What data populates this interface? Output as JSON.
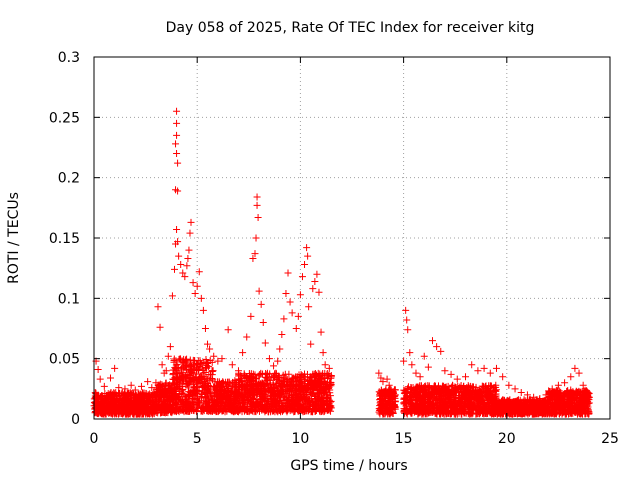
{
  "chart_data": {
    "type": "scatter",
    "title": "Day 058 of 2025, Rate Of TEC Index for receiver kitg",
    "xlabel": "GPS time / hours",
    "ylabel": "ROTI / TECUs",
    "xlim": [
      0,
      25
    ],
    "ylim": [
      0,
      0.3
    ],
    "xticks": [
      0,
      5,
      10,
      15,
      20,
      25
    ],
    "yticks": [
      0,
      0.05,
      0.1,
      0.15,
      0.2,
      0.25,
      0.3
    ],
    "xtick_labels": [
      "0",
      "5",
      "10",
      "15",
      "20",
      "25"
    ],
    "ytick_labels": [
      "0",
      "0.05",
      "0.1",
      "0.15",
      "0.2",
      "0.25",
      "0.3"
    ],
    "grid": true,
    "marker": "+",
    "color": "#ff0000",
    "series": [
      {
        "name": "ROTI",
        "points": [
          [
            0.1,
            0.048
          ],
          [
            0.2,
            0.041
          ],
          [
            0.3,
            0.033
          ],
          [
            0.5,
            0.027
          ],
          [
            0.8,
            0.034
          ],
          [
            1.0,
            0.042
          ],
          [
            1.2,
            0.026
          ],
          [
            1.5,
            0.025
          ],
          [
            1.8,
            0.028
          ],
          [
            2.0,
            0.024
          ],
          [
            2.3,
            0.027
          ],
          [
            2.6,
            0.031
          ],
          [
            2.8,
            0.026
          ],
          [
            3.0,
            0.03
          ],
          [
            3.1,
            0.093
          ],
          [
            3.2,
            0.076
          ],
          [
            3.3,
            0.045
          ],
          [
            3.4,
            0.038
          ],
          [
            3.5,
            0.04
          ],
          [
            3.6,
            0.052
          ],
          [
            3.7,
            0.06
          ],
          [
            3.8,
            0.102
          ],
          [
            3.9,
            0.124
          ],
          [
            4.0,
            0.255
          ],
          [
            4.0,
            0.245
          ],
          [
            4.0,
            0.235
          ],
          [
            3.95,
            0.228
          ],
          [
            4.0,
            0.22
          ],
          [
            4.05,
            0.212
          ],
          [
            3.95,
            0.19
          ],
          [
            4.05,
            0.189
          ],
          [
            4.0,
            0.157
          ],
          [
            4.05,
            0.147
          ],
          [
            3.95,
            0.145
          ],
          [
            4.1,
            0.135
          ],
          [
            4.2,
            0.128
          ],
          [
            4.3,
            0.121
          ],
          [
            4.4,
            0.118
          ],
          [
            4.5,
            0.127
          ],
          [
            4.55,
            0.133
          ],
          [
            4.6,
            0.14
          ],
          [
            4.7,
            0.163
          ],
          [
            4.65,
            0.154
          ],
          [
            4.8,
            0.113
          ],
          [
            4.9,
            0.104
          ],
          [
            5.0,
            0.11
          ],
          [
            5.1,
            0.122
          ],
          [
            5.2,
            0.1
          ],
          [
            5.3,
            0.09
          ],
          [
            5.4,
            0.075
          ],
          [
            5.5,
            0.062
          ],
          [
            5.6,
            0.058
          ],
          [
            5.8,
            0.052
          ],
          [
            6.0,
            0.048
          ],
          [
            6.2,
            0.05
          ],
          [
            6.5,
            0.074
          ],
          [
            6.7,
            0.045
          ],
          [
            7.0,
            0.04
          ],
          [
            7.2,
            0.055
          ],
          [
            7.4,
            0.068
          ],
          [
            7.6,
            0.085
          ],
          [
            7.7,
            0.133
          ],
          [
            7.8,
            0.137
          ],
          [
            7.85,
            0.15
          ],
          [
            7.9,
            0.184
          ],
          [
            7.9,
            0.177
          ],
          [
            7.95,
            0.167
          ],
          [
            8.0,
            0.106
          ],
          [
            8.1,
            0.095
          ],
          [
            8.2,
            0.08
          ],
          [
            8.3,
            0.063
          ],
          [
            8.5,
            0.05
          ],
          [
            8.7,
            0.044
          ],
          [
            8.9,
            0.048
          ],
          [
            9.0,
            0.058
          ],
          [
            9.1,
            0.07
          ],
          [
            9.2,
            0.083
          ],
          [
            9.3,
            0.104
          ],
          [
            9.4,
            0.121
          ],
          [
            9.5,
            0.097
          ],
          [
            9.6,
            0.088
          ],
          [
            9.8,
            0.075
          ],
          [
            9.9,
            0.085
          ],
          [
            10.0,
            0.103
          ],
          [
            10.1,
            0.118
          ],
          [
            10.2,
            0.128
          ],
          [
            10.3,
            0.142
          ],
          [
            10.35,
            0.135
          ],
          [
            10.4,
            0.093
          ],
          [
            10.5,
            0.062
          ],
          [
            10.6,
            0.108
          ],
          [
            10.7,
            0.114
          ],
          [
            10.8,
            0.12
          ],
          [
            10.9,
            0.105
          ],
          [
            11.0,
            0.072
          ],
          [
            11.1,
            0.055
          ],
          [
            11.2,
            0.045
          ],
          [
            11.4,
            0.042
          ],
          [
            11.5,
            0.035
          ],
          [
            13.8,
            0.038
          ],
          [
            13.9,
            0.034
          ],
          [
            14.0,
            0.031
          ],
          [
            14.2,
            0.033
          ],
          [
            14.3,
            0.028
          ],
          [
            14.4,
            0.024
          ],
          [
            14.5,
            0.022
          ],
          [
            14.6,
            0.02
          ],
          [
            15.0,
            0.048
          ],
          [
            15.1,
            0.09
          ],
          [
            15.15,
            0.082
          ],
          [
            15.2,
            0.074
          ],
          [
            15.3,
            0.055
          ],
          [
            15.4,
            0.045
          ],
          [
            15.6,
            0.038
          ],
          [
            15.8,
            0.035
          ],
          [
            16.0,
            0.052
          ],
          [
            16.2,
            0.043
          ],
          [
            16.4,
            0.065
          ],
          [
            16.6,
            0.06
          ],
          [
            16.8,
            0.056
          ],
          [
            17.0,
            0.04
          ],
          [
            17.3,
            0.037
          ],
          [
            17.6,
            0.033
          ],
          [
            18.0,
            0.035
          ],
          [
            18.3,
            0.045
          ],
          [
            18.6,
            0.04
          ],
          [
            18.9,
            0.042
          ],
          [
            19.2,
            0.038
          ],
          [
            19.5,
            0.042
          ],
          [
            19.8,
            0.035
          ],
          [
            20.1,
            0.028
          ],
          [
            20.4,
            0.025
          ],
          [
            20.7,
            0.022
          ],
          [
            21.0,
            0.02
          ],
          [
            21.3,
            0.018
          ],
          [
            21.6,
            0.017
          ],
          [
            21.9,
            0.02
          ],
          [
            22.2,
            0.025
          ],
          [
            22.5,
            0.028
          ],
          [
            22.8,
            0.03
          ],
          [
            23.1,
            0.035
          ],
          [
            23.3,
            0.042
          ],
          [
            23.5,
            0.038
          ],
          [
            23.7,
            0.028
          ],
          [
            23.9,
            0.022
          ],
          [
            24.0,
            0.018
          ]
        ],
        "envelope": {
          "description": "dense ROTI band: [start_hour, end_hour, min_roti, typical_top_roti]",
          "segments": [
            [
              0.0,
              3.0,
              0.004,
              0.022
            ],
            [
              3.0,
              3.8,
              0.005,
              0.03
            ],
            [
              3.8,
              5.8,
              0.006,
              0.05
            ],
            [
              5.8,
              7.0,
              0.006,
              0.032
            ],
            [
              7.0,
              11.5,
              0.006,
              0.038
            ],
            [
              13.8,
              14.6,
              0.004,
              0.025
            ],
            [
              15.0,
              19.5,
              0.004,
              0.028
            ],
            [
              19.5,
              22.0,
              0.004,
              0.016
            ],
            [
              22.0,
              24.0,
              0.004,
              0.024
            ]
          ]
        }
      }
    ]
  }
}
